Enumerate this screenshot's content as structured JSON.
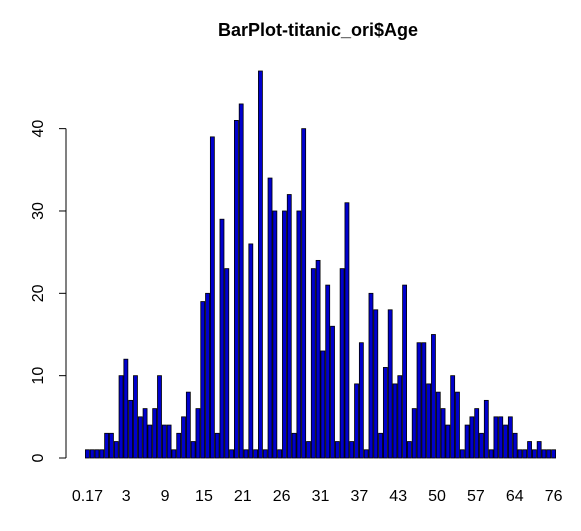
{
  "chart_data": {
    "type": "bar",
    "title": "BarPlot-titanic_ori$Age",
    "xlabel": "",
    "ylabel": "",
    "ylim": [
      0,
      47
    ],
    "yticks": [
      0,
      10,
      20,
      30,
      40
    ],
    "x_tick_labels": [
      "0.17",
      "3",
      "9",
      "15",
      "21",
      "26",
      "31",
      "37",
      "43",
      "50",
      "57",
      "64",
      "76"
    ],
    "bar_fill": "#0000cd",
    "bar_stroke": "#000000",
    "grid": false,
    "values": [
      1,
      1,
      1,
      1,
      3,
      3,
      2,
      10,
      12,
      7,
      10,
      5,
      6,
      4,
      6,
      10,
      4,
      4,
      1,
      3,
      5,
      8,
      2,
      6,
      19,
      20,
      39,
      3,
      29,
      23,
      1,
      41,
      43,
      1,
      26,
      1,
      47,
      1,
      34,
      30,
      1,
      30,
      32,
      3,
      30,
      40,
      2,
      23,
      24,
      13,
      21,
      16,
      2,
      23,
      31,
      2,
      9,
      14,
      1,
      20,
      18,
      3,
      11,
      18,
      9,
      10,
      21,
      2,
      6,
      14,
      14,
      9,
      15,
      8,
      6,
      4,
      10,
      8,
      1,
      4,
      5,
      6,
      3,
      7,
      1,
      5,
      5,
      4,
      5,
      3,
      1,
      1,
      2,
      1,
      2,
      1,
      1,
      1
    ]
  }
}
